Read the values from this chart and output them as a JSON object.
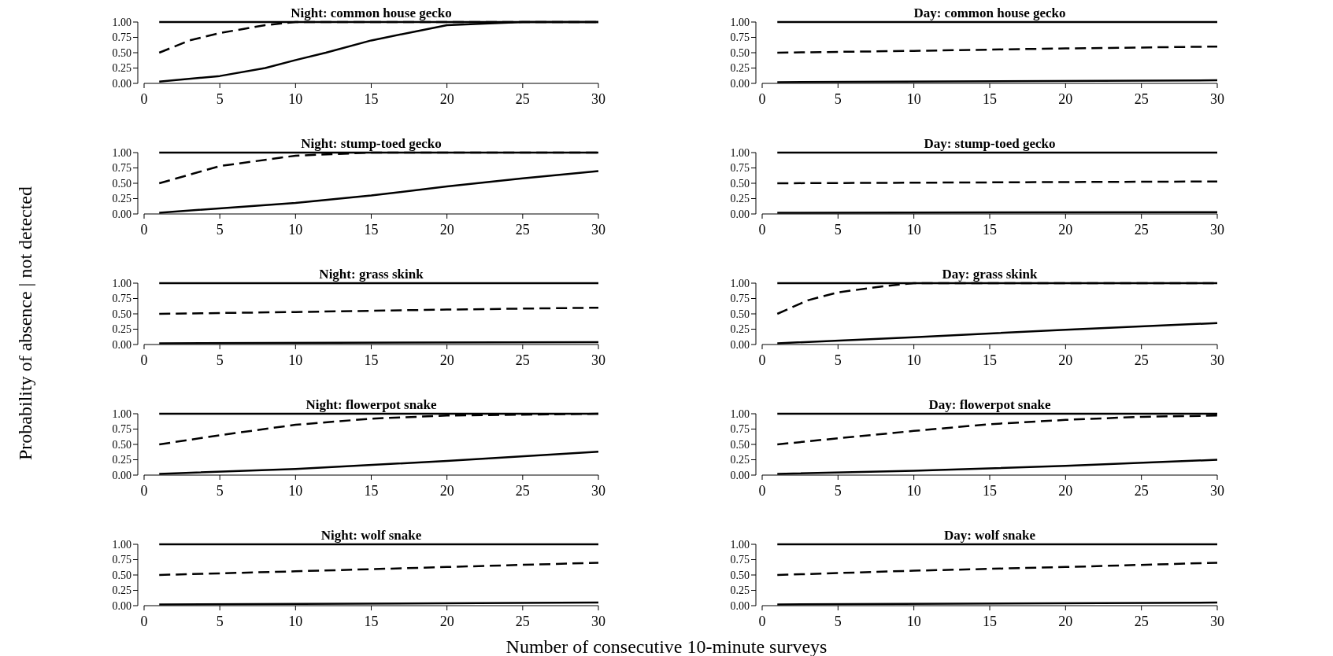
{
  "chart_data": [
    {
      "type": "line",
      "title": "Night: common house gecko",
      "ylabel": "Probability of absence | not detected",
      "xlim": [
        0,
        30
      ],
      "ylim": [
        0,
        1
      ],
      "xticks": [
        0,
        5,
        10,
        15,
        20,
        25,
        30
      ],
      "yticks": [
        {
          "value": 0,
          "label": "0.00"
        },
        {
          "value": 0.25,
          "label": "0.25"
        },
        {
          "value": 0.5,
          "label": "0.50"
        },
        {
          "value": 0.75,
          "label": "0.75"
        },
        {
          "value": 1,
          "label": "1.00"
        }
      ],
      "series": [
        {
          "color": "#000000",
          "line_style": "solid",
          "x": [
            1,
            5,
            8,
            10,
            12,
            15,
            18,
            20,
            25,
            30
          ],
          "values": [
            0.03,
            0.12,
            0.25,
            0.38,
            0.5,
            0.7,
            0.85,
            0.95,
            1,
            1
          ]
        },
        {
          "color": "#000000",
          "line_style": "dashed",
          "x": [
            1,
            3,
            5,
            8,
            10,
            30
          ],
          "values": [
            0.5,
            0.7,
            0.82,
            0.95,
            1,
            1
          ]
        },
        {
          "color": "#000000",
          "line_style": "solid",
          "x": [
            1,
            30
          ],
          "values": [
            1,
            1
          ]
        }
      ]
    },
    {
      "type": "line",
      "title": "Day: common house gecko",
      "xlim": [
        0,
        30
      ],
      "ylim": [
        0,
        1
      ],
      "xticks": [
        0,
        5,
        10,
        15,
        20,
        25,
        30
      ],
      "yticks": [
        {
          "value": 0,
          "label": "0.00"
        },
        {
          "value": 0.25,
          "label": "0.25"
        },
        {
          "value": 0.5,
          "label": "0.50"
        },
        {
          "value": 0.75,
          "label": "0.75"
        },
        {
          "value": 1,
          "label": "1.00"
        }
      ],
      "series": [
        {
          "color": "#000000",
          "line_style": "solid",
          "x": [
            1,
            30
          ],
          "values": [
            0.02,
            0.05
          ]
        },
        {
          "color": "#000000",
          "line_style": "dashed",
          "x": [
            1,
            10,
            20,
            30
          ],
          "values": [
            0.5,
            0.53,
            0.57,
            0.6
          ]
        },
        {
          "color": "#000000",
          "line_style": "solid",
          "x": [
            1,
            30
          ],
          "values": [
            1,
            1
          ]
        }
      ]
    },
    {
      "type": "line",
      "title": "Night: stump-toed gecko",
      "xlim": [
        0,
        30
      ],
      "ylim": [
        0,
        1
      ],
      "xticks": [
        0,
        5,
        10,
        15,
        20,
        25,
        30
      ],
      "yticks": [
        {
          "value": 0,
          "label": "0.00"
        },
        {
          "value": 0.25,
          "label": "0.25"
        },
        {
          "value": 0.5,
          "label": "0.50"
        },
        {
          "value": 0.75,
          "label": "0.75"
        },
        {
          "value": 1,
          "label": "1.00"
        }
      ],
      "series": [
        {
          "color": "#000000",
          "line_style": "solid",
          "x": [
            1,
            10,
            15,
            20,
            25,
            30
          ],
          "values": [
            0.02,
            0.18,
            0.3,
            0.45,
            0.58,
            0.7
          ]
        },
        {
          "color": "#000000",
          "line_style": "dashed",
          "x": [
            1,
            5,
            10,
            15,
            30
          ],
          "values": [
            0.5,
            0.78,
            0.95,
            1,
            1
          ]
        },
        {
          "color": "#000000",
          "line_style": "solid",
          "x": [
            1,
            30
          ],
          "values": [
            1,
            1
          ]
        }
      ]
    },
    {
      "type": "line",
      "title": "Day: stump-toed gecko",
      "xlim": [
        0,
        30
      ],
      "ylim": [
        0,
        1
      ],
      "xticks": [
        0,
        5,
        10,
        15,
        20,
        25,
        30
      ],
      "yticks": [
        {
          "value": 0,
          "label": "0.00"
        },
        {
          "value": 0.25,
          "label": "0.25"
        },
        {
          "value": 0.5,
          "label": "0.50"
        },
        {
          "value": 0.75,
          "label": "0.75"
        },
        {
          "value": 1,
          "label": "1.00"
        }
      ],
      "series": [
        {
          "color": "#000000",
          "line_style": "solid",
          "x": [
            1,
            30
          ],
          "values": [
            0.02,
            0.03
          ]
        },
        {
          "color": "#000000",
          "line_style": "dashed",
          "x": [
            1,
            30
          ],
          "values": [
            0.5,
            0.53
          ]
        },
        {
          "color": "#000000",
          "line_style": "solid",
          "x": [
            1,
            30
          ],
          "values": [
            1,
            1
          ]
        }
      ]
    },
    {
      "type": "line",
      "title": "Night: grass skink",
      "xlim": [
        0,
        30
      ],
      "ylim": [
        0,
        1
      ],
      "xticks": [
        0,
        5,
        10,
        15,
        20,
        25,
        30
      ],
      "yticks": [
        {
          "value": 0,
          "label": "0.00"
        },
        {
          "value": 0.25,
          "label": "0.25"
        },
        {
          "value": 0.5,
          "label": "0.50"
        },
        {
          "value": 0.75,
          "label": "0.75"
        },
        {
          "value": 1,
          "label": "1.00"
        }
      ],
      "series": [
        {
          "color": "#000000",
          "line_style": "solid",
          "x": [
            1,
            30
          ],
          "values": [
            0.02,
            0.04
          ]
        },
        {
          "color": "#000000",
          "line_style": "dashed",
          "x": [
            1,
            10,
            20,
            30
          ],
          "values": [
            0.5,
            0.53,
            0.57,
            0.6
          ]
        },
        {
          "color": "#000000",
          "line_style": "solid",
          "x": [
            1,
            30
          ],
          "values": [
            1,
            1
          ]
        }
      ]
    },
    {
      "type": "line",
      "title": "Day: grass skink",
      "xlim": [
        0,
        30
      ],
      "ylim": [
        0,
        1
      ],
      "xticks": [
        0,
        5,
        10,
        15,
        20,
        25,
        30
      ],
      "yticks": [
        {
          "value": 0,
          "label": "0.00"
        },
        {
          "value": 0.25,
          "label": "0.25"
        },
        {
          "value": 0.5,
          "label": "0.50"
        },
        {
          "value": 0.75,
          "label": "0.75"
        },
        {
          "value": 1,
          "label": "1.00"
        }
      ],
      "series": [
        {
          "color": "#000000",
          "line_style": "solid",
          "x": [
            1,
            10,
            20,
            30
          ],
          "values": [
            0.02,
            0.12,
            0.24,
            0.35
          ]
        },
        {
          "color": "#000000",
          "line_style": "dashed",
          "x": [
            1,
            3,
            5,
            8,
            10,
            30
          ],
          "values": [
            0.5,
            0.72,
            0.85,
            0.95,
            1,
            1
          ]
        },
        {
          "color": "#000000",
          "line_style": "solid",
          "x": [
            1,
            30
          ],
          "values": [
            1,
            1
          ]
        }
      ]
    },
    {
      "type": "line",
      "title": "Night: flowerpot snake",
      "xlim": [
        0,
        30
      ],
      "ylim": [
        0,
        1
      ],
      "xticks": [
        0,
        5,
        10,
        15,
        20,
        25,
        30
      ],
      "yticks": [
        {
          "value": 0,
          "label": "0.00"
        },
        {
          "value": 0.25,
          "label": "0.25"
        },
        {
          "value": 0.5,
          "label": "0.50"
        },
        {
          "value": 0.75,
          "label": "0.75"
        },
        {
          "value": 1,
          "label": "1.00"
        }
      ],
      "series": [
        {
          "color": "#000000",
          "line_style": "solid",
          "x": [
            1,
            10,
            20,
            30
          ],
          "values": [
            0.02,
            0.1,
            0.23,
            0.38
          ]
        },
        {
          "color": "#000000",
          "line_style": "dashed",
          "x": [
            1,
            5,
            10,
            15,
            20,
            30
          ],
          "values": [
            0.5,
            0.65,
            0.82,
            0.92,
            0.97,
            1
          ]
        },
        {
          "color": "#000000",
          "line_style": "solid",
          "x": [
            1,
            30
          ],
          "values": [
            1,
            1
          ]
        }
      ]
    },
    {
      "type": "line",
      "title": "Day: flowerpot snake",
      "xlim": [
        0,
        30
      ],
      "ylim": [
        0,
        1
      ],
      "xticks": [
        0,
        5,
        10,
        15,
        20,
        25,
        30
      ],
      "yticks": [
        {
          "value": 0,
          "label": "0.00"
        },
        {
          "value": 0.25,
          "label": "0.25"
        },
        {
          "value": 0.5,
          "label": "0.50"
        },
        {
          "value": 0.75,
          "label": "0.75"
        },
        {
          "value": 1,
          "label": "1.00"
        }
      ],
      "series": [
        {
          "color": "#000000",
          "line_style": "solid",
          "x": [
            1,
            10,
            20,
            30
          ],
          "values": [
            0.02,
            0.07,
            0.15,
            0.25
          ]
        },
        {
          "color": "#000000",
          "line_style": "dashed",
          "x": [
            1,
            5,
            10,
            15,
            20,
            25,
            30
          ],
          "values": [
            0.5,
            0.6,
            0.72,
            0.83,
            0.9,
            0.95,
            0.97
          ]
        },
        {
          "color": "#000000",
          "line_style": "solid",
          "x": [
            1,
            30
          ],
          "values": [
            1,
            1
          ]
        }
      ]
    },
    {
      "type": "line",
      "title": "Night:  wolf snake",
      "xlabel": "Number of consecutive 10-minute surveys",
      "xlim": [
        0,
        30
      ],
      "ylim": [
        0,
        1
      ],
      "xticks": [
        0,
        5,
        10,
        15,
        20,
        25,
        30
      ],
      "yticks": [
        {
          "value": 0,
          "label": "0.00"
        },
        {
          "value": 0.25,
          "label": "0.25"
        },
        {
          "value": 0.5,
          "label": "0.50"
        },
        {
          "value": 0.75,
          "label": "0.75"
        },
        {
          "value": 1,
          "label": "1.00"
        }
      ],
      "series": [
        {
          "color": "#000000",
          "line_style": "solid",
          "x": [
            1,
            30
          ],
          "values": [
            0.02,
            0.05
          ]
        },
        {
          "color": "#000000",
          "line_style": "dashed",
          "x": [
            1,
            10,
            20,
            30
          ],
          "values": [
            0.5,
            0.56,
            0.63,
            0.7
          ]
        },
        {
          "color": "#000000",
          "line_style": "solid",
          "x": [
            1,
            30
          ],
          "values": [
            1,
            1
          ]
        }
      ]
    },
    {
      "type": "line",
      "title": "Day:  wolf snake",
      "xlim": [
        0,
        30
      ],
      "ylim": [
        0,
        1
      ],
      "xticks": [
        0,
        5,
        10,
        15,
        20,
        25,
        30
      ],
      "yticks": [
        {
          "value": 0,
          "label": "0.00"
        },
        {
          "value": 0.25,
          "label": "0.25"
        },
        {
          "value": 0.5,
          "label": "0.50"
        },
        {
          "value": 0.75,
          "label": "0.75"
        },
        {
          "value": 1,
          "label": "1.00"
        }
      ],
      "series": [
        {
          "color": "#000000",
          "line_style": "solid",
          "x": [
            1,
            30
          ],
          "values": [
            0.02,
            0.05
          ]
        },
        {
          "color": "#000000",
          "line_style": "dashed",
          "x": [
            1,
            10,
            20,
            30
          ],
          "values": [
            0.5,
            0.57,
            0.63,
            0.7
          ]
        },
        {
          "color": "#000000",
          "line_style": "solid",
          "x": [
            1,
            30
          ],
          "values": [
            1,
            1
          ]
        }
      ]
    }
  ]
}
